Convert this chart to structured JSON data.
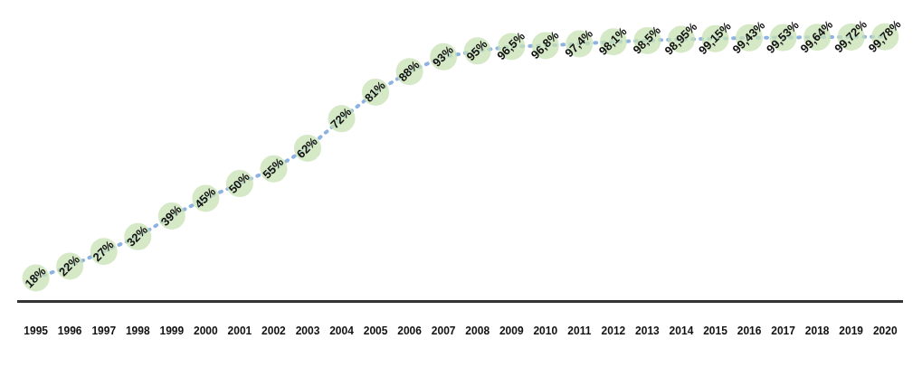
{
  "chart_data": {
    "type": "line",
    "categories": [
      "1995",
      "1996",
      "1997",
      "1998",
      "1999",
      "2000",
      "2001",
      "2002",
      "2003",
      "2004",
      "2005",
      "2006",
      "2007",
      "2008",
      "2009",
      "2010",
      "2011",
      "2012",
      "2013",
      "2014",
      "2015",
      "2016",
      "2017",
      "2018",
      "2019",
      "2020"
    ],
    "series": [
      {
        "color": "#8db3e2",
        "values": [
          18,
          22,
          27,
          32,
          39,
          45,
          50,
          55,
          62,
          72,
          81,
          88,
          93,
          95,
          96.5,
          96.8,
          97.4,
          98.1,
          98.5,
          98.95,
          99.15,
          99.43,
          99.53,
          99.64,
          99.72,
          99.78
        ],
        "value_labels": [
          "18%",
          "22%",
          "27%",
          "32%",
          "39%",
          "45%",
          "50%",
          "55%",
          "62%",
          "72%",
          "81%",
          "88%",
          "93%",
          "95%",
          "96,5%",
          "96,8%",
          "97,4%",
          "98,1%",
          "98,5%",
          "98,95%",
          "99,15%",
          "99,43%",
          "99,53%",
          "99,64%",
          "99,72%",
          "99,78%"
        ]
      }
    ],
    "marker": "circle",
    "line_style": "dotted",
    "grid": false,
    "legend": false,
    "tick_labels": "x"
  }
}
